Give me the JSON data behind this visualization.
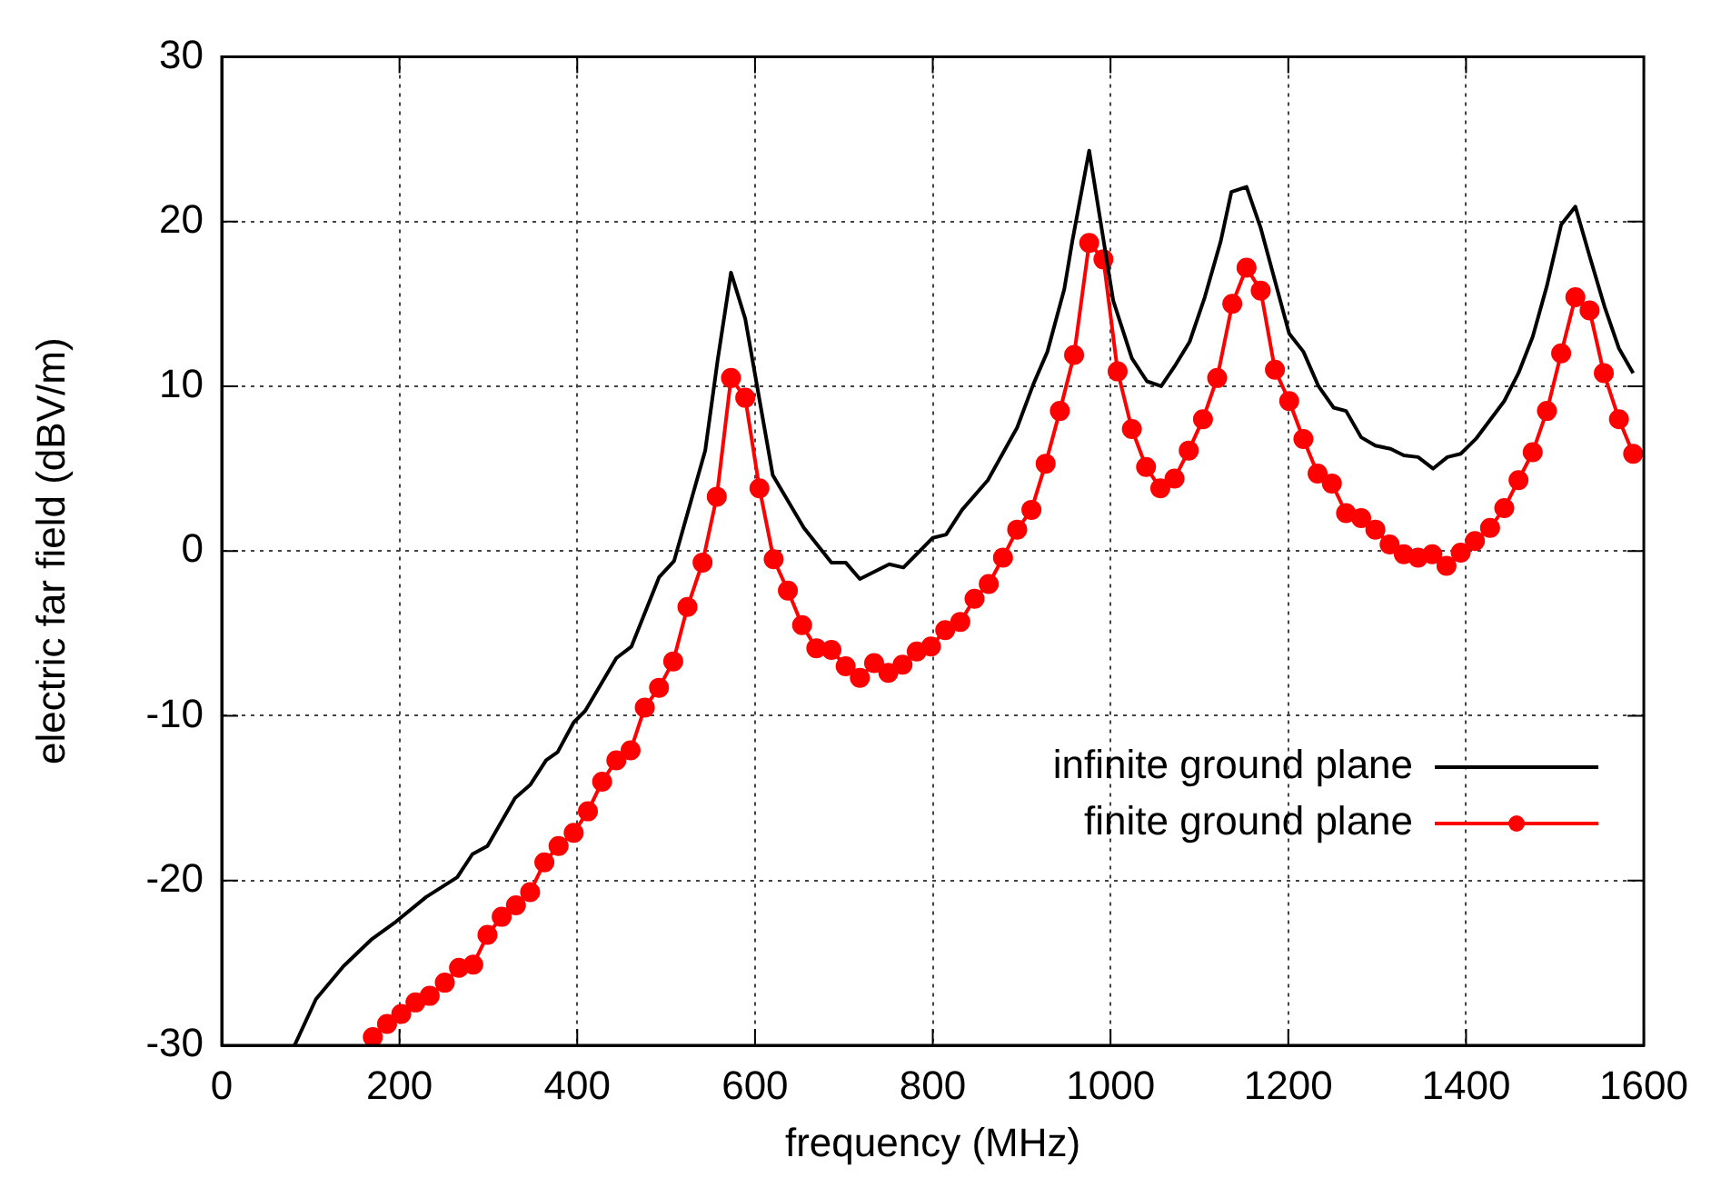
{
  "chart_data": {
    "type": "line",
    "xlabel": "frequency (MHz)",
    "ylabel": "electric far field (dBV/m)",
    "xlim": [
      0,
      1600
    ],
    "xticks": [
      0,
      200,
      400,
      600,
      800,
      1000,
      1200,
      1400,
      1600
    ],
    "ylim": [
      -30,
      30
    ],
    "yticks": [
      -30,
      -20,
      -10,
      0,
      10,
      20,
      30
    ],
    "grid": true,
    "legend": "bottom right",
    "series": [
      {
        "name": "infinite ground plane",
        "color": "#000000",
        "marker": "none",
        "x": [
          82,
          106,
          137,
          168,
          196,
          230,
          265,
          282,
          299,
          330,
          347,
          365,
          378,
          396,
          409,
          444,
          461,
          492,
          509,
          544,
          558,
          573,
          589,
          620,
          655,
          686,
          702,
          718,
          751,
          767,
          800,
          815,
          833,
          862,
          895,
          913,
          929,
          948,
          957,
          976,
          1003,
          1024,
          1041,
          1057,
          1072,
          1089,
          1106,
          1124,
          1136,
          1153,
          1169,
          1201,
          1217,
          1234,
          1251,
          1265,
          1282,
          1298,
          1315,
          1330,
          1346,
          1363,
          1379,
          1394,
          1411,
          1443,
          1459,
          1475,
          1491,
          1507,
          1523,
          1539,
          1556,
          1572,
          1588
        ],
        "values": [
          -30,
          -27.2,
          -25.2,
          -23.6,
          -22.5,
          -21.0,
          -19.8,
          -18.4,
          -17.9,
          -15.0,
          -14.2,
          -12.7,
          -12.2,
          -10.4,
          -9.7,
          -6.5,
          -5.8,
          -1.6,
          -0.6,
          6.1,
          11.6,
          16.9,
          14.1,
          4.6,
          1.4,
          -0.7,
          -0.7,
          -1.7,
          -0.8,
          -1.0,
          0.8,
          1.0,
          2.5,
          4.3,
          7.5,
          10.1,
          12.1,
          15.9,
          18.8,
          24.3,
          15.2,
          11.7,
          10.3,
          10.0,
          11.2,
          12.7,
          15.4,
          18.8,
          21.8,
          22.1,
          19.6,
          13.2,
          12.1,
          10.0,
          8.7,
          8.5,
          6.9,
          6.4,
          6.2,
          5.8,
          5.7,
          5.0,
          5.7,
          5.9,
          6.8,
          9.1,
          10.8,
          13.0,
          16.1,
          19.8,
          20.9,
          17.9,
          14.8,
          12.3,
          10.8
        ]
      },
      {
        "name": "finite ground plane",
        "color": "#ff0000",
        "marker": "circle",
        "x": [
          170,
          186,
          202,
          218,
          234,
          251,
          267,
          283,
          299,
          315,
          331,
          347,
          363,
          379,
          396,
          412,
          428,
          444,
          460,
          476,
          492,
          508,
          524,
          541,
          557,
          573,
          589,
          605,
          621,
          637,
          653,
          669,
          686,
          702,
          718,
          734,
          750,
          766,
          782,
          798,
          814,
          831,
          847,
          863,
          879,
          895,
          911,
          927,
          943,
          959,
          976,
          992,
          1008,
          1024,
          1040,
          1056,
          1072,
          1088,
          1104,
          1120,
          1137,
          1153,
          1169,
          1185,
          1201,
          1217,
          1233,
          1249,
          1265,
          1282,
          1298,
          1314,
          1330,
          1346,
          1362,
          1378,
          1394,
          1410,
          1427,
          1443,
          1459,
          1475,
          1491,
          1507,
          1523,
          1539,
          1555,
          1572,
          1588
        ],
        "values": [
          -29.5,
          -28.7,
          -28.1,
          -27.4,
          -27.0,
          -26.2,
          -25.3,
          -25.1,
          -23.3,
          -22.2,
          -21.5,
          -20.7,
          -18.9,
          -17.9,
          -17.1,
          -15.8,
          -14.0,
          -12.7,
          -12.1,
          -9.5,
          -8.3,
          -6.7,
          -3.4,
          -0.7,
          3.3,
          10.5,
          9.3,
          3.8,
          -0.5,
          -2.4,
          -4.5,
          -5.9,
          -6.0,
          -7.0,
          -7.7,
          -6.8,
          -7.4,
          -6.9,
          -6.1,
          -5.8,
          -4.8,
          -4.3,
          -2.9,
          -2.0,
          -0.4,
          1.3,
          2.5,
          5.3,
          8.5,
          11.9,
          18.7,
          17.7,
          10.9,
          7.4,
          5.1,
          3.8,
          4.4,
          6.1,
          8.0,
          10.5,
          15.0,
          17.2,
          15.8,
          11.0,
          9.1,
          6.8,
          4.7,
          4.1,
          2.3,
          2.0,
          1.3,
          0.4,
          -0.2,
          -0.4,
          -0.2,
          -0.9,
          -0.1,
          0.6,
          1.4,
          2.6,
          4.3,
          6.0,
          8.5,
          12.0,
          15.4,
          14.6,
          10.8,
          8.0,
          5.9
        ]
      }
    ]
  }
}
